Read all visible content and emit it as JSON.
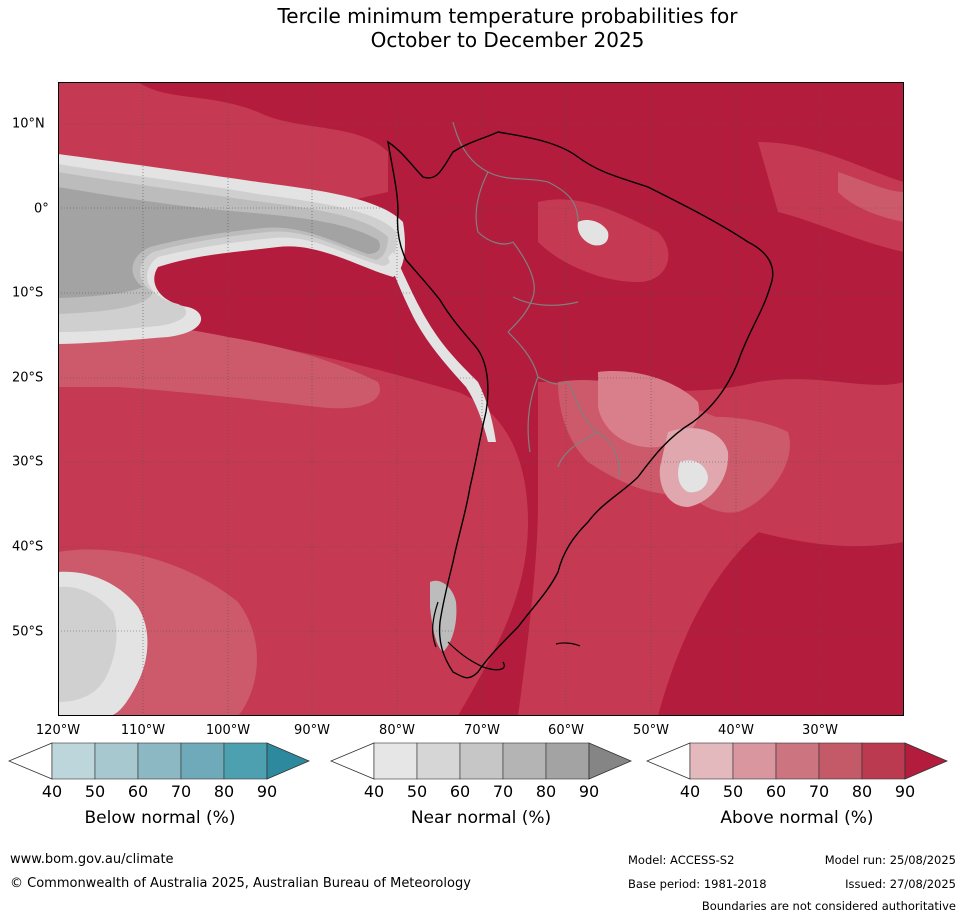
{
  "title_line1": "Tercile minimum temperature probabilities for",
  "title_line2": "October to December 2025",
  "map": {
    "lat_labels": [
      "10°N",
      "0°",
      "10°S",
      "20°S",
      "30°S",
      "40°S",
      "50°S"
    ],
    "lon_labels": [
      "120°W",
      "110°W",
      "100°W",
      "90°W",
      "80°W",
      "70°W",
      "60°W",
      "50°W",
      "40°W",
      "30°W"
    ],
    "colors": {
      "above_90": "#b31c3c",
      "above_80": "#c53a52",
      "above_70": "#cc5a6a",
      "above_60": "#d97f8b",
      "above_50": "#e0a7ae",
      "near_90": "#a3a3a3",
      "near_80": "#bcbcbc",
      "near_70": "#cfcfcf",
      "near_60": "#e3e3e3",
      "coast": "#000000",
      "borders": "#808080"
    }
  },
  "legends": {
    "below": {
      "title": "Below normal (%)",
      "ticks": [
        "40",
        "50",
        "60",
        "70",
        "80",
        "90"
      ],
      "colors": [
        "#bdd6dc",
        "#a8c8cf",
        "#8cb8c4",
        "#6eaab9",
        "#4da0b0",
        "#2d8a9e"
      ]
    },
    "near": {
      "title": "Near normal (%)",
      "ticks": [
        "40",
        "50",
        "60",
        "70",
        "80",
        "90"
      ],
      "colors": [
        "#e6e6e6",
        "#d6d6d6",
        "#c6c6c6",
        "#b4b4b4",
        "#a3a3a3",
        "#858585"
      ]
    },
    "above": {
      "title": "Above normal (%)",
      "ticks": [
        "40",
        "50",
        "60",
        "70",
        "80",
        "90"
      ],
      "colors": [
        "#e3b9be",
        "#d9969f",
        "#cc7480",
        "#c45968",
        "#bb3a4f",
        "#b31c3c"
      ]
    }
  },
  "footer": {
    "website": "www.bom.gov.au/climate",
    "copyright": "© Commonwealth of Australia 2025, Australian Bureau of Meteorology",
    "model": "Model: ACCESS-S2",
    "base_period": "Base period: 1981-2018",
    "model_run": "Model run: 25/08/2025",
    "issued": "Issued: 27/08/2025",
    "disclaimer": "Boundaries are not considered authoritative"
  }
}
